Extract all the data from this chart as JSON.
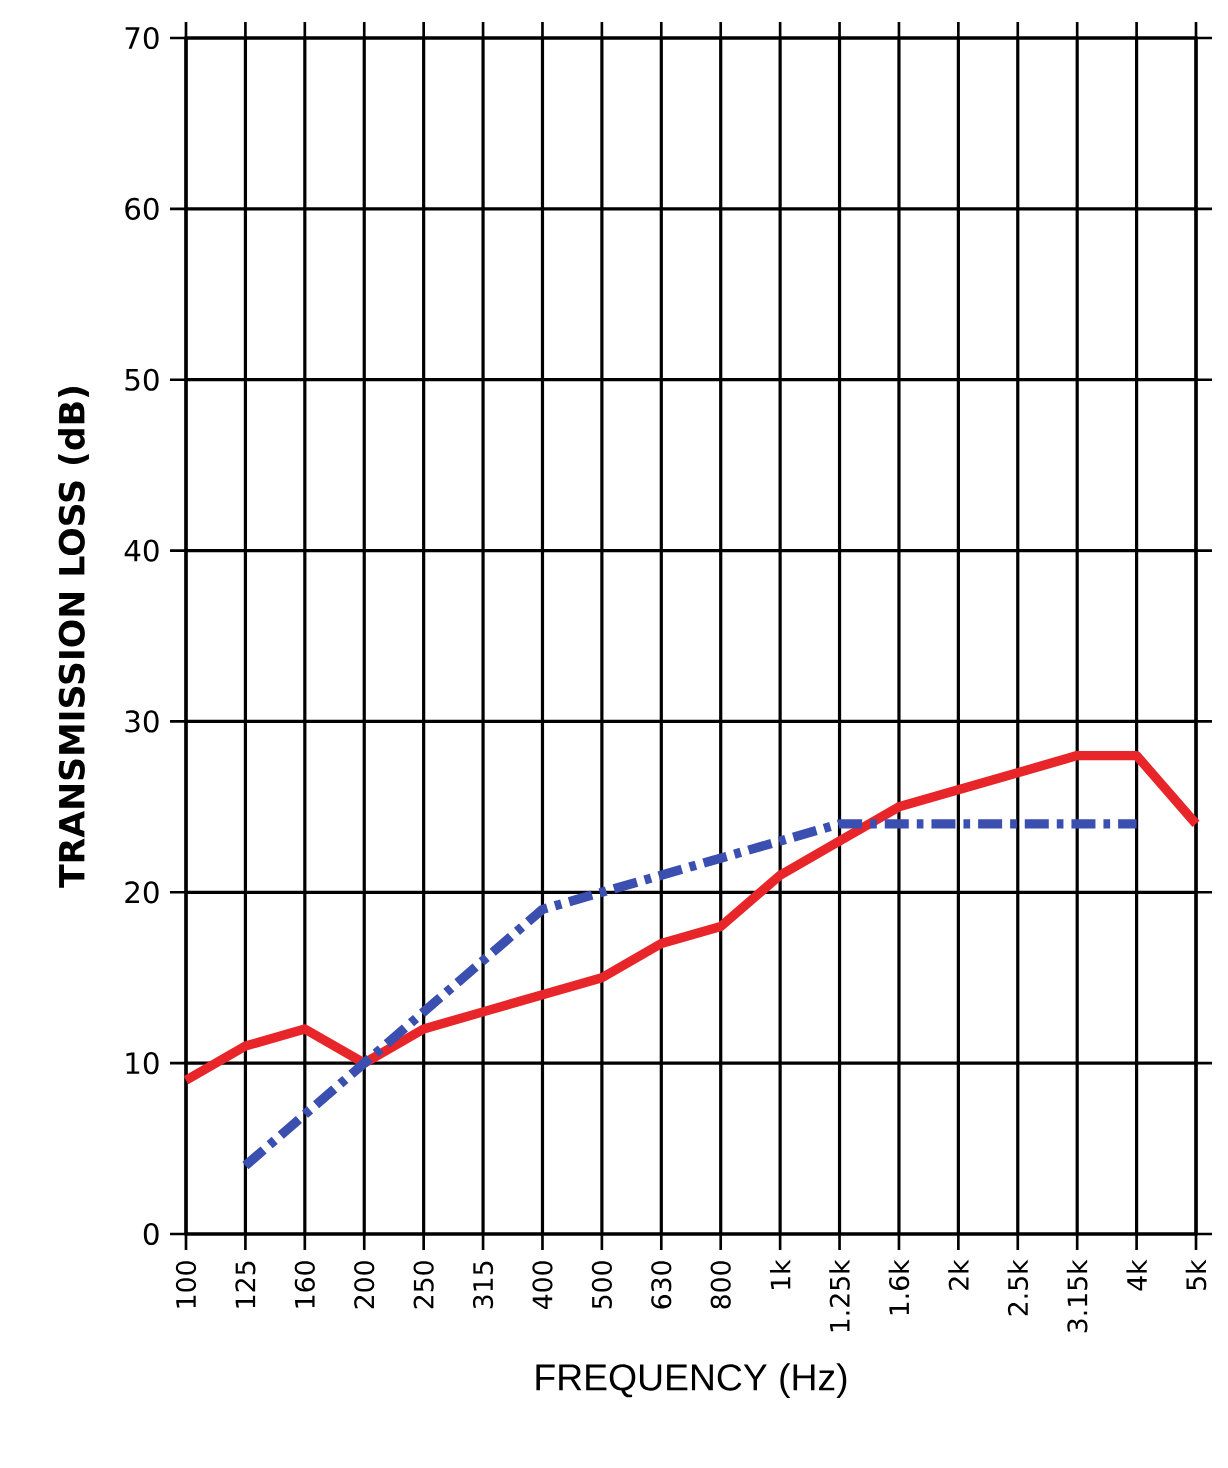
{
  "chart_data": {
    "type": "line",
    "xlabel": "FREQUENCY (Hz)",
    "ylabel": "TRANSMISSION LOSS (dB)",
    "categories": [
      "100",
      "125",
      "160",
      "200",
      "250",
      "315",
      "400",
      "500",
      "630",
      "800",
      "1k",
      "1.25k",
      "1.6k",
      "2k",
      "2.5k",
      "3.15k",
      "4k",
      "5k"
    ],
    "series": [
      {
        "color": "#e8262a",
        "line_style": "solid",
        "values": [
          9,
          11,
          12,
          10,
          12,
          13,
          14,
          15,
          17,
          18,
          21,
          23,
          25,
          26,
          27,
          28,
          28,
          24
        ]
      },
      {
        "color": "#3a4fb0",
        "line_style": "dashdot",
        "values": [
          null,
          4,
          7,
          10,
          13,
          16,
          19,
          20,
          21,
          22,
          23,
          24,
          24,
          24,
          24,
          24,
          24,
          null
        ]
      }
    ],
    "ylim": [
      0,
      70
    ],
    "yticks": [
      0,
      10,
      20,
      30,
      40,
      50,
      60,
      70
    ],
    "grid": true,
    "marker": "none"
  }
}
